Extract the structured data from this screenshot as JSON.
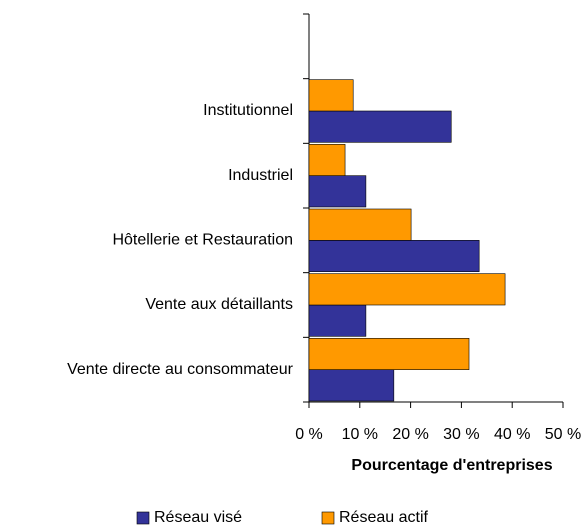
{
  "chart_data": {
    "type": "bar",
    "orientation": "horizontal",
    "categories": [
      null,
      "Institutionnel",
      "Industriel",
      "Hôtellerie et Restauration",
      "Vente aux détaillants",
      "Vente directe au consommateur"
    ],
    "series": [
      {
        "name": "Réseau visé",
        "color": "#333399",
        "values": [
          null,
          28,
          11.2,
          33.5,
          11.2,
          16.7
        ]
      },
      {
        "name": "Réseau actif",
        "color": "#ff9900",
        "values": [
          null,
          8.7,
          7.1,
          20.1,
          38.6,
          31.5
        ]
      }
    ],
    "x_label": "Pourcentage d'entreprises",
    "xlim": [
      0,
      50
    ],
    "xticks": [
      {
        "value": 0,
        "label": "0 %"
      },
      {
        "value": 10,
        "label": "10 %"
      },
      {
        "value": 20,
        "label": "20 %"
      },
      {
        "value": 30,
        "label": "30 %"
      },
      {
        "value": 40,
        "label": "40 %"
      },
      {
        "value": 50,
        "label": "50 %"
      }
    ],
    "grid": false,
    "legend": "bottom"
  }
}
